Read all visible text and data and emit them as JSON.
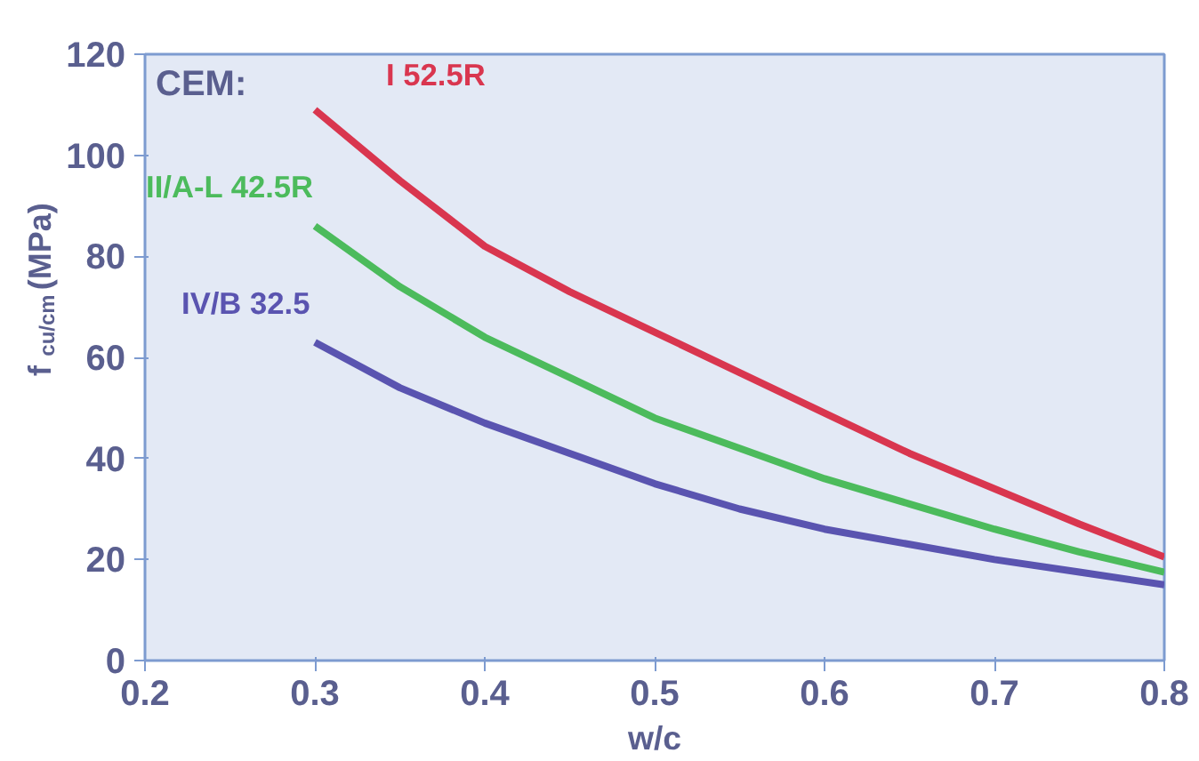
{
  "chart_data": {
    "type": "line",
    "xlabel": "w/c",
    "ylabel": "f$_{cu/cm}$(MPa)",
    "legend_title": "CEM:",
    "x": [
      0.3,
      0.35,
      0.4,
      0.45,
      0.5,
      0.55,
      0.6,
      0.65,
      0.7,
      0.75,
      0.8
    ],
    "series": [
      {
        "name": "I 52.5R",
        "color": "#d9364f",
        "values": [
          109,
          95,
          82,
          73,
          65,
          57,
          49,
          41,
          34,
          27,
          20.5
        ]
      },
      {
        "name": "II/A-L 42.5R",
        "color": "#4cbb5c",
        "values": [
          86,
          74,
          64,
          56,
          48,
          42,
          36,
          31,
          26,
          21.5,
          17.5
        ]
      },
      {
        "name": "IV/B 32.5",
        "color": "#5a54b0",
        "values": [
          63,
          54,
          47,
          41,
          35,
          30,
          26,
          23,
          20,
          17.5,
          15
        ]
      }
    ],
    "xlim": [
      0.2,
      0.8
    ],
    "ylim": [
      0,
      120
    ],
    "xticks": [
      0.2,
      0.3,
      0.4,
      0.5,
      0.6,
      0.7,
      0.8
    ],
    "yticks": [
      0,
      20,
      40,
      60,
      80,
      100,
      120
    ],
    "grid": false,
    "marker": "none",
    "line_style": "solid"
  }
}
